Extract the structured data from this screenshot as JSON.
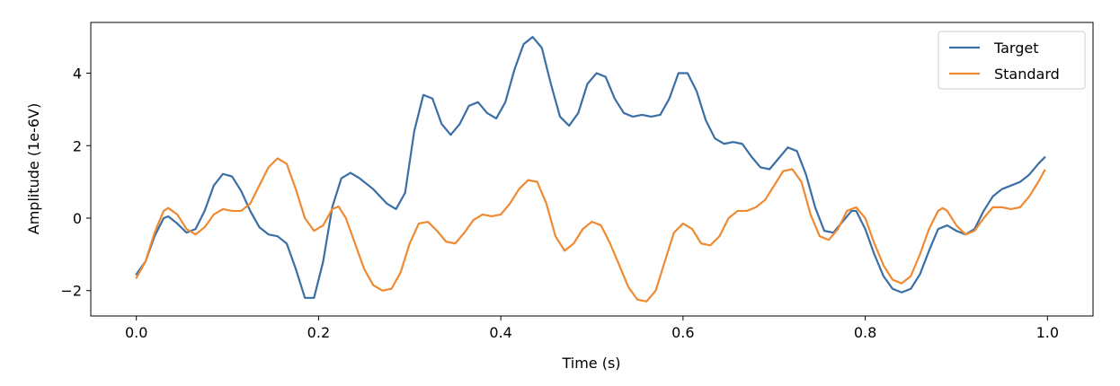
{
  "chart_data": {
    "type": "line",
    "title": "",
    "xlabel": "Time (s)",
    "ylabel": "Amplitude (1e-6V)",
    "xlim": [
      -0.05,
      1.05
    ],
    "ylim": [
      -2.7,
      5.4
    ],
    "xticks": [
      0.0,
      0.2,
      0.4,
      0.6,
      0.8,
      1.0
    ],
    "xtick_labels": [
      "0.0",
      "0.2",
      "0.4",
      "0.6",
      "0.8",
      "1.0"
    ],
    "yticks": [
      -2,
      0,
      2,
      4
    ],
    "ytick_labels": [
      "−2",
      "0",
      "2",
      "4"
    ],
    "grid": false,
    "legend_position": "top-right",
    "series": [
      {
        "name": "Target",
        "color": "#3a6fa5",
        "points": [
          [
            0.0,
            -1.55
          ],
          [
            0.01,
            -1.2
          ],
          [
            0.02,
            -0.5
          ],
          [
            0.03,
            0.0
          ],
          [
            0.035,
            0.05
          ],
          [
            0.045,
            -0.15
          ],
          [
            0.055,
            -0.4
          ],
          [
            0.065,
            -0.3
          ],
          [
            0.075,
            0.2
          ],
          [
            0.085,
            0.9
          ],
          [
            0.095,
            1.22
          ],
          [
            0.105,
            1.15
          ],
          [
            0.115,
            0.75
          ],
          [
            0.125,
            0.2
          ],
          [
            0.135,
            -0.25
          ],
          [
            0.145,
            -0.45
          ],
          [
            0.155,
            -0.5
          ],
          [
            0.165,
            -0.7
          ],
          [
            0.175,
            -1.4
          ],
          [
            0.185,
            -2.2
          ],
          [
            0.195,
            -2.2
          ],
          [
            0.205,
            -1.2
          ],
          [
            0.215,
            0.3
          ],
          [
            0.225,
            1.1
          ],
          [
            0.235,
            1.25
          ],
          [
            0.245,
            1.1
          ],
          [
            0.26,
            0.8
          ],
          [
            0.275,
            0.4
          ],
          [
            0.285,
            0.25
          ],
          [
            0.295,
            0.7
          ],
          [
            0.305,
            2.4
          ],
          [
            0.315,
            3.4
          ],
          [
            0.325,
            3.3
          ],
          [
            0.335,
            2.6
          ],
          [
            0.345,
            2.3
          ],
          [
            0.355,
            2.6
          ],
          [
            0.365,
            3.1
          ],
          [
            0.375,
            3.2
          ],
          [
            0.385,
            2.9
          ],
          [
            0.395,
            2.75
          ],
          [
            0.405,
            3.2
          ],
          [
            0.415,
            4.1
          ],
          [
            0.425,
            4.8
          ],
          [
            0.435,
            5.0
          ],
          [
            0.445,
            4.7
          ],
          [
            0.455,
            3.7
          ],
          [
            0.465,
            2.8
          ],
          [
            0.475,
            2.55
          ],
          [
            0.485,
            2.9
          ],
          [
            0.495,
            3.7
          ],
          [
            0.505,
            4.0
          ],
          [
            0.515,
            3.9
          ],
          [
            0.525,
            3.3
          ],
          [
            0.535,
            2.9
          ],
          [
            0.545,
            2.8
          ],
          [
            0.555,
            2.85
          ],
          [
            0.565,
            2.8
          ],
          [
            0.575,
            2.85
          ],
          [
            0.585,
            3.3
          ],
          [
            0.595,
            4.0
          ],
          [
            0.605,
            4.0
          ],
          [
            0.615,
            3.5
          ],
          [
            0.625,
            2.7
          ],
          [
            0.635,
            2.2
          ],
          [
            0.645,
            2.05
          ],
          [
            0.655,
            2.1
          ],
          [
            0.665,
            2.05
          ],
          [
            0.675,
            1.7
          ],
          [
            0.685,
            1.4
          ],
          [
            0.695,
            1.35
          ],
          [
            0.705,
            1.65
          ],
          [
            0.715,
            1.95
          ],
          [
            0.725,
            1.85
          ],
          [
            0.735,
            1.2
          ],
          [
            0.745,
            0.3
          ],
          [
            0.755,
            -0.35
          ],
          [
            0.765,
            -0.4
          ],
          [
            0.775,
            -0.1
          ],
          [
            0.785,
            0.2
          ],
          [
            0.79,
            0.2
          ],
          [
            0.8,
            -0.3
          ],
          [
            0.81,
            -1.0
          ],
          [
            0.82,
            -1.6
          ],
          [
            0.83,
            -1.95
          ],
          [
            0.84,
            -2.05
          ],
          [
            0.85,
            -1.95
          ],
          [
            0.86,
            -1.55
          ],
          [
            0.87,
            -0.9
          ],
          [
            0.88,
            -0.3
          ],
          [
            0.89,
            -0.2
          ],
          [
            0.9,
            -0.35
          ],
          [
            0.91,
            -0.45
          ],
          [
            0.92,
            -0.3
          ],
          [
            0.93,
            0.2
          ],
          [
            0.94,
            0.6
          ],
          [
            0.95,
            0.8
          ],
          [
            0.96,
            0.9
          ],
          [
            0.97,
            1.0
          ],
          [
            0.98,
            1.2
          ],
          [
            0.99,
            1.5
          ],
          [
            0.997,
            1.68
          ]
        ]
      },
      {
        "name": "Standard",
        "color": "#ef8a33",
        "points": [
          [
            0.0,
            -1.65
          ],
          [
            0.01,
            -1.2
          ],
          [
            0.02,
            -0.4
          ],
          [
            0.03,
            0.2
          ],
          [
            0.035,
            0.28
          ],
          [
            0.045,
            0.1
          ],
          [
            0.055,
            -0.3
          ],
          [
            0.065,
            -0.45
          ],
          [
            0.075,
            -0.25
          ],
          [
            0.085,
            0.1
          ],
          [
            0.095,
            0.25
          ],
          [
            0.105,
            0.2
          ],
          [
            0.115,
            0.2
          ],
          [
            0.125,
            0.4
          ],
          [
            0.135,
            0.9
          ],
          [
            0.145,
            1.4
          ],
          [
            0.155,
            1.65
          ],
          [
            0.165,
            1.5
          ],
          [
            0.175,
            0.8
          ],
          [
            0.185,
            0.0
          ],
          [
            0.195,
            -0.35
          ],
          [
            0.205,
            -0.2
          ],
          [
            0.215,
            0.25
          ],
          [
            0.222,
            0.32
          ],
          [
            0.23,
            0.0
          ],
          [
            0.24,
            -0.7
          ],
          [
            0.25,
            -1.4
          ],
          [
            0.26,
            -1.85
          ],
          [
            0.27,
            -2.0
          ],
          [
            0.28,
            -1.95
          ],
          [
            0.29,
            -1.5
          ],
          [
            0.3,
            -0.7
          ],
          [
            0.31,
            -0.15
          ],
          [
            0.32,
            -0.1
          ],
          [
            0.33,
            -0.35
          ],
          [
            0.34,
            -0.65
          ],
          [
            0.35,
            -0.7
          ],
          [
            0.36,
            -0.4
          ],
          [
            0.37,
            -0.05
          ],
          [
            0.38,
            0.1
          ],
          [
            0.39,
            0.05
          ],
          [
            0.4,
            0.1
          ],
          [
            0.41,
            0.4
          ],
          [
            0.42,
            0.8
          ],
          [
            0.43,
            1.05
          ],
          [
            0.44,
            1.0
          ],
          [
            0.45,
            0.4
          ],
          [
            0.46,
            -0.5
          ],
          [
            0.47,
            -0.9
          ],
          [
            0.48,
            -0.7
          ],
          [
            0.49,
            -0.3
          ],
          [
            0.5,
            -0.1
          ],
          [
            0.51,
            -0.2
          ],
          [
            0.52,
            -0.7
          ],
          [
            0.53,
            -1.3
          ],
          [
            0.54,
            -1.9
          ],
          [
            0.55,
            -2.25
          ],
          [
            0.56,
            -2.3
          ],
          [
            0.57,
            -2.0
          ],
          [
            0.58,
            -1.2
          ],
          [
            0.59,
            -0.4
          ],
          [
            0.6,
            -0.15
          ],
          [
            0.61,
            -0.3
          ],
          [
            0.62,
            -0.7
          ],
          [
            0.63,
            -0.75
          ],
          [
            0.64,
            -0.5
          ],
          [
            0.65,
            0.0
          ],
          [
            0.66,
            0.2
          ],
          [
            0.67,
            0.2
          ],
          [
            0.68,
            0.3
          ],
          [
            0.69,
            0.5
          ],
          [
            0.7,
            0.9
          ],
          [
            0.71,
            1.3
          ],
          [
            0.72,
            1.35
          ],
          [
            0.73,
            1.0
          ],
          [
            0.74,
            0.1
          ],
          [
            0.75,
            -0.5
          ],
          [
            0.76,
            -0.6
          ],
          [
            0.77,
            -0.3
          ],
          [
            0.78,
            0.2
          ],
          [
            0.79,
            0.3
          ],
          [
            0.8,
            0.0
          ],
          [
            0.81,
            -0.7
          ],
          [
            0.82,
            -1.3
          ],
          [
            0.83,
            -1.7
          ],
          [
            0.84,
            -1.8
          ],
          [
            0.85,
            -1.6
          ],
          [
            0.86,
            -1.0
          ],
          [
            0.87,
            -0.3
          ],
          [
            0.88,
            0.2
          ],
          [
            0.885,
            0.28
          ],
          [
            0.89,
            0.2
          ],
          [
            0.9,
            -0.2
          ],
          [
            0.91,
            -0.45
          ],
          [
            0.92,
            -0.35
          ],
          [
            0.93,
            0.0
          ],
          [
            0.94,
            0.3
          ],
          [
            0.95,
            0.3
          ],
          [
            0.96,
            0.25
          ],
          [
            0.97,
            0.3
          ],
          [
            0.98,
            0.6
          ],
          [
            0.99,
            1.0
          ],
          [
            0.997,
            1.32
          ]
        ]
      }
    ]
  }
}
